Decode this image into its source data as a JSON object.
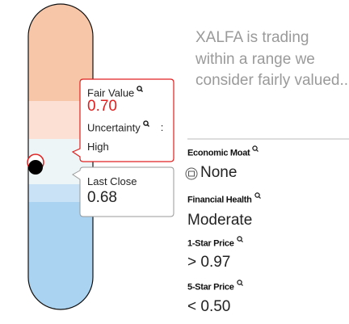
{
  "fair_value_box": {
    "label": "Fair Value",
    "value": "0.70",
    "uncertainty_label": "Uncertainty",
    "separator": ":",
    "uncertainty": "High"
  },
  "last_close_box": {
    "label": "Last Close",
    "value": "0.68"
  },
  "summary": "XALFA is trading within a range we consider fairly valued..",
  "metrics": [
    {
      "label": "Economic Moat",
      "value": "None"
    },
    {
      "label": "Financial Health",
      "value": "Moderate"
    },
    {
      "label": "1-Star Price",
      "value": "> 0.97"
    },
    {
      "label": "5-Star Price",
      "value": "< 0.50"
    }
  ]
}
